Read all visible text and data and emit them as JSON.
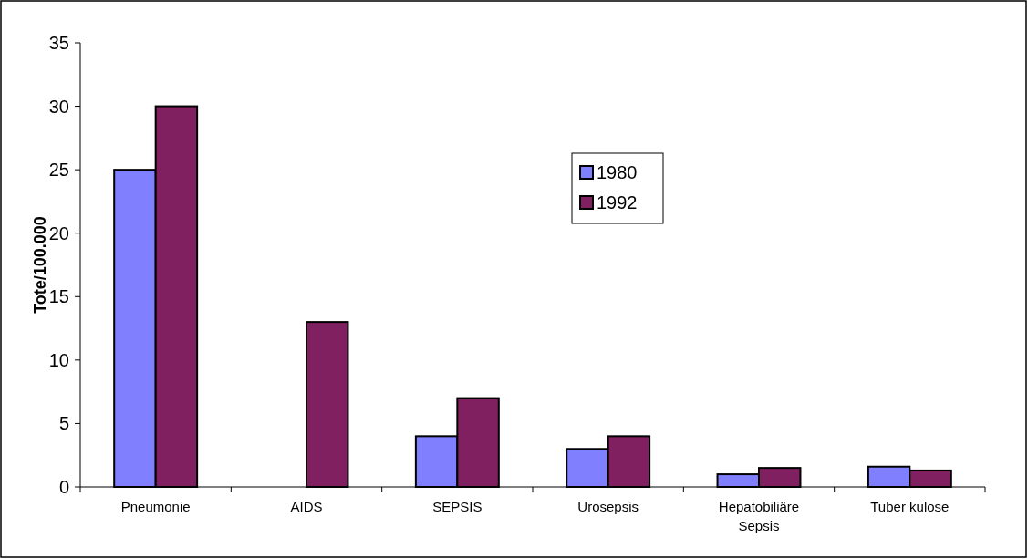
{
  "chart_data": {
    "type": "bar",
    "ylabel": "Tote/100.000",
    "categories": [
      "Pneumonie",
      "AIDS",
      "SEPSIS",
      "Urosepsis",
      "Hepatobiliäre\nSepsis",
      "Tuber kulose"
    ],
    "series": [
      {
        "name": "1980",
        "color": "#8080ff",
        "values": [
          25,
          null,
          4,
          3,
          1,
          1.6
        ]
      },
      {
        "name": "1992",
        "color": "#802060",
        "values": [
          30,
          13,
          7,
          4,
          1.5,
          1.3
        ]
      }
    ],
    "ylim": [
      0,
      35
    ],
    "yticks": [
      0,
      5,
      10,
      15,
      20,
      25,
      30,
      35
    ],
    "legend": "top right"
  }
}
